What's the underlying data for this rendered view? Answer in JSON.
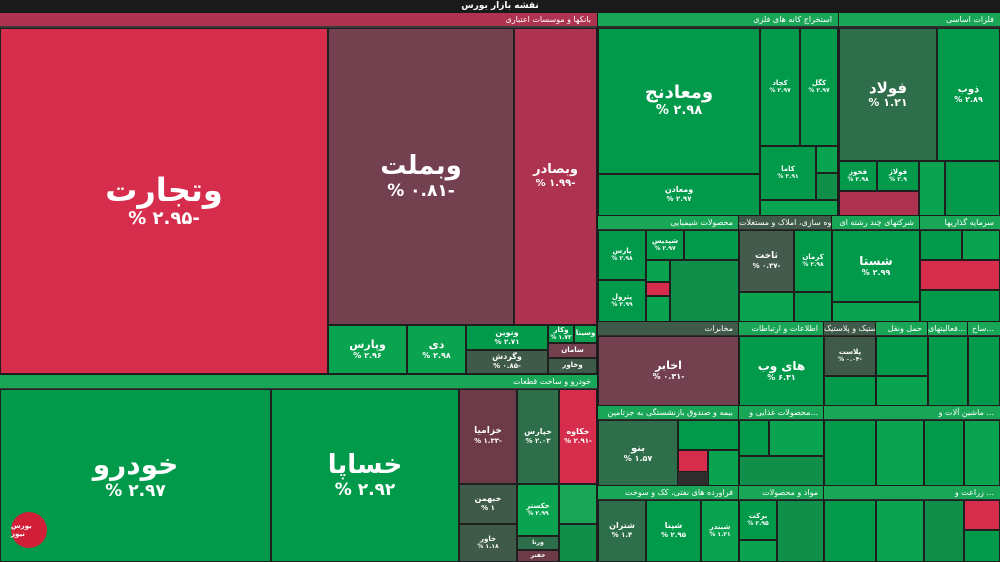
{
  "title": "نقشه بازار بورس",
  "groups": {
    "banks": "بانکها و موسسات اعتباری",
    "auto": "خودرو و ساخت قطعات",
    "metal_mining": "استخراج کانه های فلزی",
    "basic_metals": "فلزات اساسی",
    "chemicals": "محصولات شیمیایی",
    "construction": "انبوه سازی، املاک و مستغلات",
    "multi": "شرکتهای چند رشته ای",
    "telecom": "مخابرات",
    "it": "اطلاعات و ارتباطات",
    "rubber": "لاستیک و پلاستیک",
    "transport": "حمل ونقل",
    "invest": "فعالیتهای...",
    "insurance": "بیمه و صندوق بازنشستگی به جزتامین",
    "food": "محصولات غذایی و...",
    "machinery": "ماشین آلات و ...",
    "refinery": "فراورده های نفتی، کک و سوخت",
    "materials": "مواد و محصولات",
    "agri": "زراعت و ...",
    "cap_market": "سرمایه گذاریها",
    "build": "ساخ..."
  },
  "tiles": {
    "vtejarat": {
      "name": "وتجارت",
      "value": "-۲.۹۵ %"
    },
    "vbmellat": {
      "name": "وبملت",
      "value": "-۰.۸۱ %"
    },
    "vbsader": {
      "name": "وبصادر",
      "value": "-۱.۹۹ %"
    },
    "vparis": {
      "name": "وپارس",
      "value": "۲.۹۶ %"
    },
    "day": {
      "name": "دی",
      "value": "۲.۹۸ %"
    },
    "vnovin": {
      "name": "ونوین",
      "value": "۲.۷۱ %"
    },
    "vkar": {
      "name": "وکار",
      "value": "۱.۷۳ %"
    },
    "vsina": {
      "name": "وسینا",
      "value": ""
    },
    "vgardesh": {
      "name": "وگردش",
      "value": "-۰.۸۵ %"
    },
    "saman": {
      "name": "سامان",
      "value": ""
    },
    "vkhavar": {
      "name": "وخاور",
      "value": ""
    },
    "khodro": {
      "name": "خودرو",
      "value": "۲.۹۷ %"
    },
    "khsapa": {
      "name": "خساپا",
      "value": "۲.۹۲ %"
    },
    "khzamia": {
      "name": "خزامیا",
      "value": "-۱.۳۳ %"
    },
    "khparis": {
      "name": "خپارس",
      "value": "۲.۰۳ %"
    },
    "khekaveh": {
      "name": "خکاوه",
      "value": "-۲.۹۱ %"
    },
    "khbahman": {
      "name": "خبهمن",
      "value": "۱ %"
    },
    "khkaster": {
      "name": "خکستر",
      "value": "۲.۹۹ %"
    },
    "khavar": {
      "name": "خاور",
      "value": "۱.۱۸ %"
    },
    "vrena": {
      "name": "ورنا",
      "value": ""
    },
    "khaftar": {
      "name": "خفنر",
      "value": ""
    },
    "vmaadan": {
      "name": "ومعادنج",
      "value": "۲.۹۸ %"
    },
    "kchad": {
      "name": "کچاد",
      "value": "۲.۹۷ %"
    },
    "kgol": {
      "name": "کگل",
      "value": "۲.۹۷ %"
    },
    "vmadan2": {
      "name": "ومعادن",
      "value": "۲.۹۷ %"
    },
    "kama": {
      "name": "کاما",
      "value": "۲.۹۱ %"
    },
    "fooldad": {
      "name": "فولاد",
      "value": "۱.۲۱ %"
    },
    "zob": {
      "name": "ذوب",
      "value": "۲.۸۹ %"
    },
    "fkhooz": {
      "name": "فخوز",
      "value": "۲.۹۸ %"
    },
    "fvlad": {
      "name": "فولاژ",
      "value": "۲.۹ %"
    },
    "akhabr": {
      "name": "اخابر",
      "value": "-۰.۳۱ %"
    },
    "takhet": {
      "name": "ثاخت",
      "value": "-۰.۳۷ %"
    },
    "kerman": {
      "name": "کرمان",
      "value": "۲.۹۸ %"
    },
    "shasta": {
      "name": "شستا",
      "value": "۲.۹۹ %"
    },
    "haivb": {
      "name": "های وب",
      "value": "۶.۳۱ %"
    },
    "plast": {
      "name": "پلاست",
      "value": "-۰.۰۴ %"
    },
    "bno": {
      "name": "بنو",
      "value": "۱.۵۷ %"
    },
    "shetran": {
      "name": "شتران",
      "value": "۱.۴ %"
    },
    "shpna": {
      "name": "شپنا",
      "value": "۲.۹۵ %"
    },
    "shbandar": {
      "name": "شبندر",
      "value": "۱.۲۱ %"
    },
    "barkat": {
      "name": "برکت",
      "value": "۲.۹۵ %"
    },
    "fparsan": {
      "name": "پارس",
      "value": "۲.۹۸ %"
    },
    "shepdis": {
      "name": "شپدیس",
      "value": "۲.۹۷ %"
    },
    "petrol": {
      "name": "پترول",
      "value": "۲.۹۹ %"
    }
  },
  "logo_text": "بورس نیوز"
}
